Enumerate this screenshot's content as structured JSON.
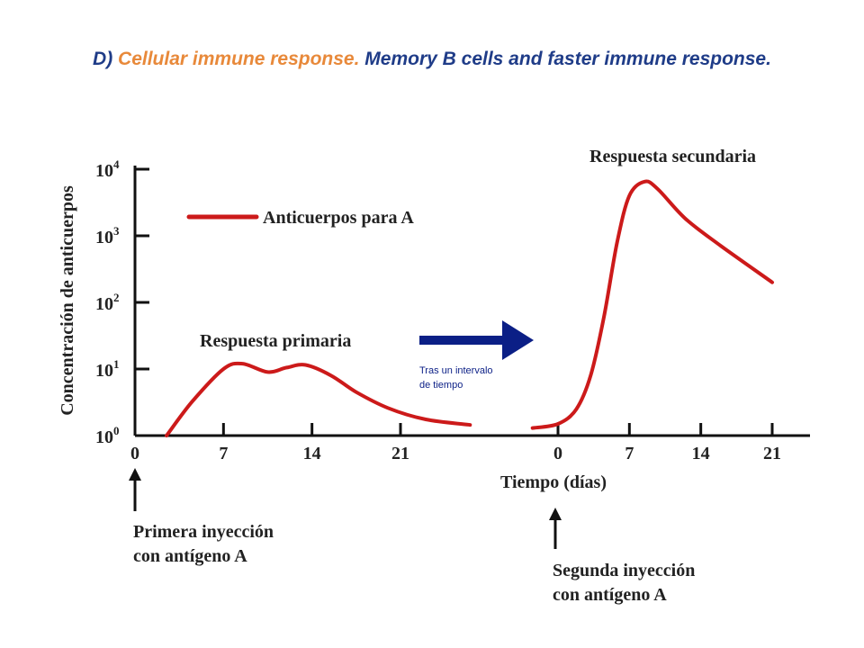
{
  "slide": {
    "title_prefix": "D) ",
    "title_highlight": "Cellular immune response.",
    "title_rest": " Memory B cells and faster immune response."
  },
  "colors": {
    "curve": "#cc1a1a",
    "arrow": "#0b1f86",
    "axis": "#111111",
    "title_blue": "#1f3c88",
    "title_orange": "#e8893a"
  },
  "chart_data": {
    "type": "line",
    "y_scale": "log",
    "ylabel": "Concentración de anticuerpos",
    "xlabel": "Tiempo (días)",
    "ylim": [
      1,
      10000
    ],
    "y_ticks": [
      {
        "value": 1,
        "base": "10",
        "exp": "0"
      },
      {
        "value": 10,
        "base": "10",
        "exp": "1"
      },
      {
        "value": 100,
        "base": "10",
        "exp": "2"
      },
      {
        "value": 1000,
        "base": "10",
        "exp": "3"
      },
      {
        "value": 10000,
        "base": "10",
        "exp": "4"
      }
    ],
    "legend": {
      "label": "Anticuerpos para A",
      "placement": "top-left"
    },
    "panels": [
      {
        "x_ticks": [
          "0",
          "7",
          "14",
          "21"
        ],
        "xlim": [
          0,
          27.5
        ],
        "series_label": "Respuesta primaria",
        "points": [
          [
            2.5,
            1
          ],
          [
            4.5,
            3.2
          ],
          [
            7,
            10
          ],
          [
            8.5,
            12
          ],
          [
            10.5,
            9
          ],
          [
            12,
            10.5
          ],
          [
            13.5,
            11.5
          ],
          [
            15.5,
            8
          ],
          [
            17.5,
            4.5
          ],
          [
            20,
            2.6
          ],
          [
            23,
            1.75
          ],
          [
            26.5,
            1.45
          ]
        ],
        "injection_label": [
          "Primera inyección",
          "con antígeno A"
        ]
      },
      {
        "x_ticks": [
          "0",
          "7",
          "14",
          "21"
        ],
        "xlim": [
          -3.2,
          24.5
        ],
        "series_label": "Respuesta secundaria",
        "points": [
          [
            -2.5,
            1.3
          ],
          [
            0,
            1.5
          ],
          [
            1.8,
            2.5
          ],
          [
            3.2,
            8
          ],
          [
            4.5,
            60
          ],
          [
            5.8,
            800
          ],
          [
            7,
            4000
          ],
          [
            8.5,
            6500
          ],
          [
            9.8,
            5000
          ],
          [
            12.5,
            1800
          ],
          [
            16,
            700
          ],
          [
            21,
            200
          ]
        ],
        "injection_label": [
          "Segunda inyección",
          "con antígeno A"
        ]
      }
    ],
    "transition_arrow_label": [
      "Tras un intervalo",
      "de tiempo"
    ]
  }
}
